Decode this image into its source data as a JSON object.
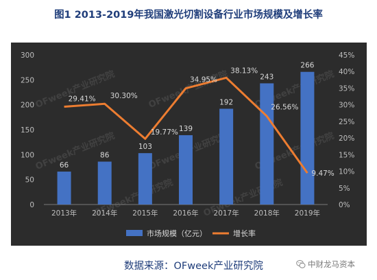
{
  "header": {
    "title": "图1 2013-2019年我国激光切割设备行业市场规模及增长率"
  },
  "footer": {
    "source": "数据来源：OFweek产业研究院",
    "credit": "中财龙马资本"
  },
  "watermark": "OFweek产业研究院",
  "chart_data": {
    "type": "bar",
    "title": "",
    "categories": [
      "2013年",
      "2014年",
      "2015年",
      "2016年",
      "2017年",
      "2018年",
      "2019年"
    ],
    "series": [
      {
        "name": "市场规模（亿元）",
        "type": "bar",
        "axis": "left",
        "values": [
          66,
          86,
          103,
          139,
          192,
          243,
          266
        ],
        "labels": [
          "66",
          "86",
          "103",
          "139",
          "192",
          "243",
          "266"
        ],
        "color": "#4472c4"
      },
      {
        "name": "增长率",
        "type": "line",
        "axis": "right",
        "values": [
          29.41,
          30.3,
          19.77,
          34.95,
          38.13,
          26.56,
          9.47
        ],
        "labels": [
          "29.41%",
          "30.30%",
          "19.77%",
          "34.95%",
          "38.13%",
          "26.56%",
          "9.47%"
        ],
        "color": "#ed7d31"
      }
    ],
    "y_left": {
      "min": 0,
      "max": 300,
      "ticks": [
        "0",
        "50",
        "100",
        "150",
        "200",
        "250",
        "300"
      ]
    },
    "y_right": {
      "min": 0,
      "max": 45,
      "ticks": [
        "0%",
        "5%",
        "10%",
        "15%",
        "20%",
        "25%",
        "30%",
        "35%",
        "40%",
        "45%"
      ]
    },
    "legend_position": "bottom",
    "grid": false
  }
}
